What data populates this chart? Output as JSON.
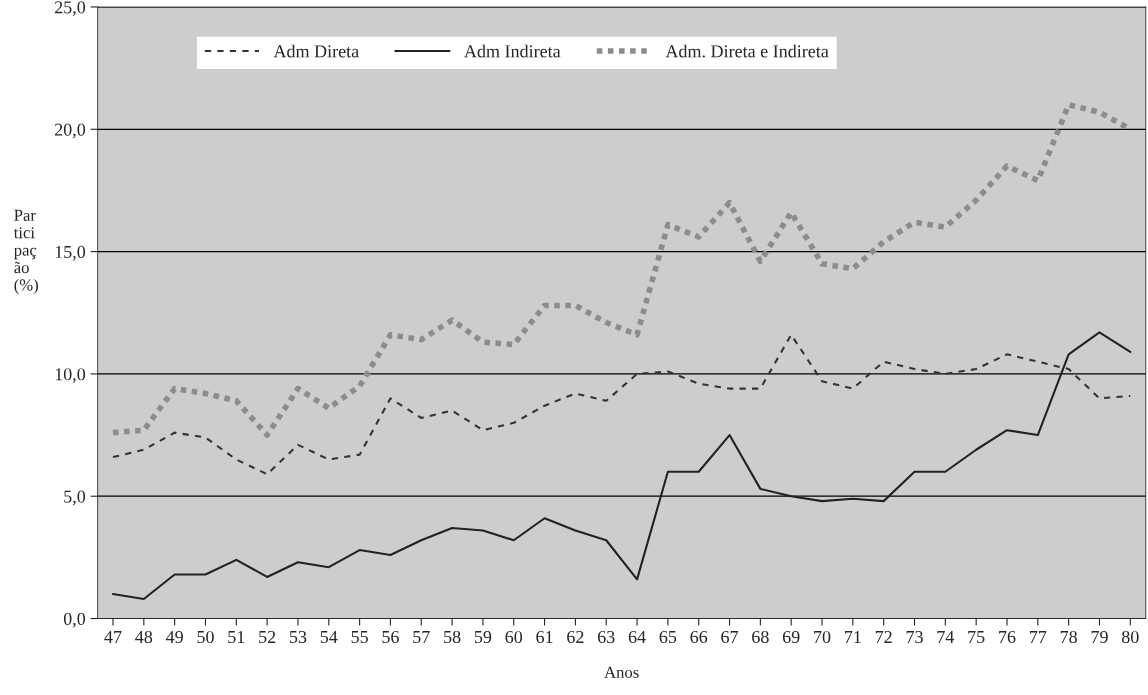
{
  "chart_data": {
    "type": "line",
    "xlabel": "Anos",
    "ylabel": "Par\ntici\npaç\não\n(%)",
    "categories": [
      "47",
      "48",
      "49",
      "50",
      "51",
      "52",
      "53",
      "54",
      "55",
      "56",
      "57",
      "58",
      "59",
      "60",
      "61",
      "62",
      "63",
      "64",
      "65",
      "66",
      "67",
      "68",
      "69",
      "70",
      "71",
      "72",
      "73",
      "74",
      "75",
      "76",
      "77",
      "78",
      "79",
      "80"
    ],
    "series": [
      {
        "name": "Adm Direta",
        "color": "#333333",
        "line_style": "dashed",
        "values": [
          6.6,
          6.9,
          7.6,
          7.4,
          6.5,
          5.9,
          7.1,
          6.5,
          6.7,
          9.0,
          8.2,
          8.5,
          7.7,
          8.0,
          8.7,
          9.2,
          8.9,
          10.0,
          10.1,
          9.6,
          9.4,
          9.4,
          11.6,
          9.7,
          9.4,
          10.5,
          10.2,
          10.0,
          10.2,
          10.8,
          10.5,
          10.2,
          9.0,
          9.1
        ]
      },
      {
        "name": "Adm Indireta",
        "color": "#222222",
        "line_style": "solid",
        "values": [
          1.0,
          0.8,
          1.8,
          1.8,
          2.4,
          1.7,
          2.3,
          2.1,
          2.8,
          2.6,
          3.2,
          3.7,
          3.6,
          3.2,
          4.1,
          3.6,
          3.2,
          1.6,
          6.0,
          6.0,
          7.5,
          5.3,
          5.0,
          4.8,
          4.9,
          4.8,
          6.0,
          6.0,
          6.9,
          7.7,
          7.5,
          10.8,
          11.7,
          10.9
        ]
      },
      {
        "name": "Adm. Direta e Indireta",
        "color": "#8c8c8c",
        "line_style": "dotted",
        "values": [
          7.6,
          7.7,
          9.4,
          9.2,
          8.9,
          7.5,
          9.4,
          8.6,
          9.5,
          11.6,
          11.4,
          12.2,
          11.3,
          11.2,
          12.8,
          12.8,
          12.1,
          11.6,
          16.1,
          15.6,
          17.0,
          14.6,
          16.6,
          14.5,
          14.3,
          15.4,
          16.2,
          16.0,
          17.1,
          18.5,
          17.9,
          21.0,
          20.7,
          20.0
        ]
      }
    ],
    "ylim": [
      0,
      25
    ],
    "yticks": [
      {
        "value": 0,
        "label": "0,0"
      },
      {
        "value": 5,
        "label": "5,0"
      },
      {
        "value": 10,
        "label": "10,0"
      },
      {
        "value": 15,
        "label": "15,0"
      },
      {
        "value": 20,
        "label": "20,0"
      },
      {
        "value": 25,
        "label": "25,0"
      }
    ],
    "grid": "y",
    "legend": "top",
    "marker": "none"
  }
}
